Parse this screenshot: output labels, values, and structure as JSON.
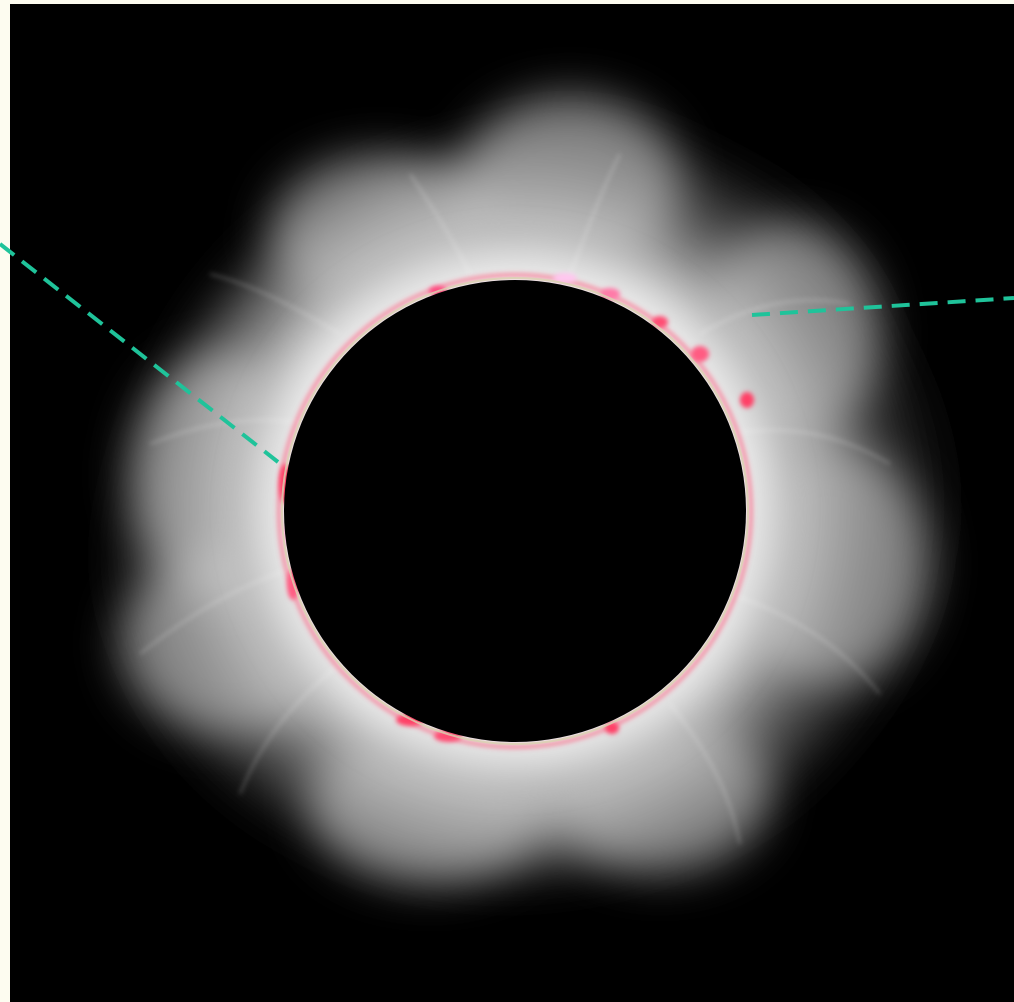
{
  "photo": {
    "subject": "total-solar-eclipse",
    "colors": {
      "frame_margin": "#fdfcf0",
      "sky": "#000000",
      "moon_disk": "#000000",
      "corona_core": "#f4f4f4",
      "corona_mid": "#9a9a9a",
      "prominence": "#ff3f66",
      "prominence_highlight": "#ffb3d9",
      "limb_rim": "#d8d2b0"
    }
  },
  "callouts": {
    "color": "#1fc39a",
    "style": "dashed"
  }
}
